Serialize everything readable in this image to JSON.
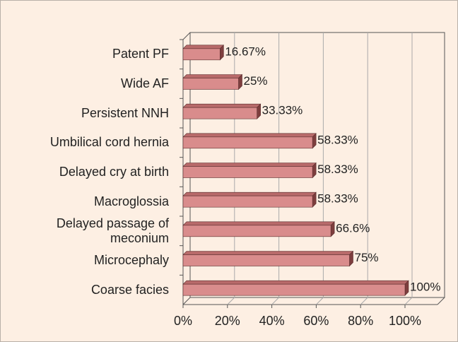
{
  "chart_data": {
    "type": "bar",
    "orientation": "horizontal",
    "categories": [
      "Patent PF",
      "Wide AF",
      "Persistent NNH",
      "Umbilical cord hernia",
      "Delayed cry at birth",
      "Macroglossia",
      "Delayed passage of meconium",
      "Microcephaly",
      "Coarse facies"
    ],
    "values": [
      16.67,
      25,
      33.33,
      58.33,
      58.33,
      58.33,
      66.6,
      75,
      100
    ],
    "value_labels": [
      "16.67%",
      "25%",
      "33.33%",
      "58.33%",
      "58.33%",
      "58.33%",
      "66.6%",
      "75%",
      "100%"
    ],
    "color": "#d98c8c",
    "xlim": [
      0,
      100
    ],
    "xticks": [
      {
        "value": 0,
        "label": "0%"
      },
      {
        "value": 20,
        "label": "20%"
      },
      {
        "value": 40,
        "label": "40%"
      },
      {
        "value": 60,
        "label": "60%"
      },
      {
        "value": 80,
        "label": "80%"
      },
      {
        "value": 100,
        "label": "100%"
      }
    ],
    "grid": true
  }
}
